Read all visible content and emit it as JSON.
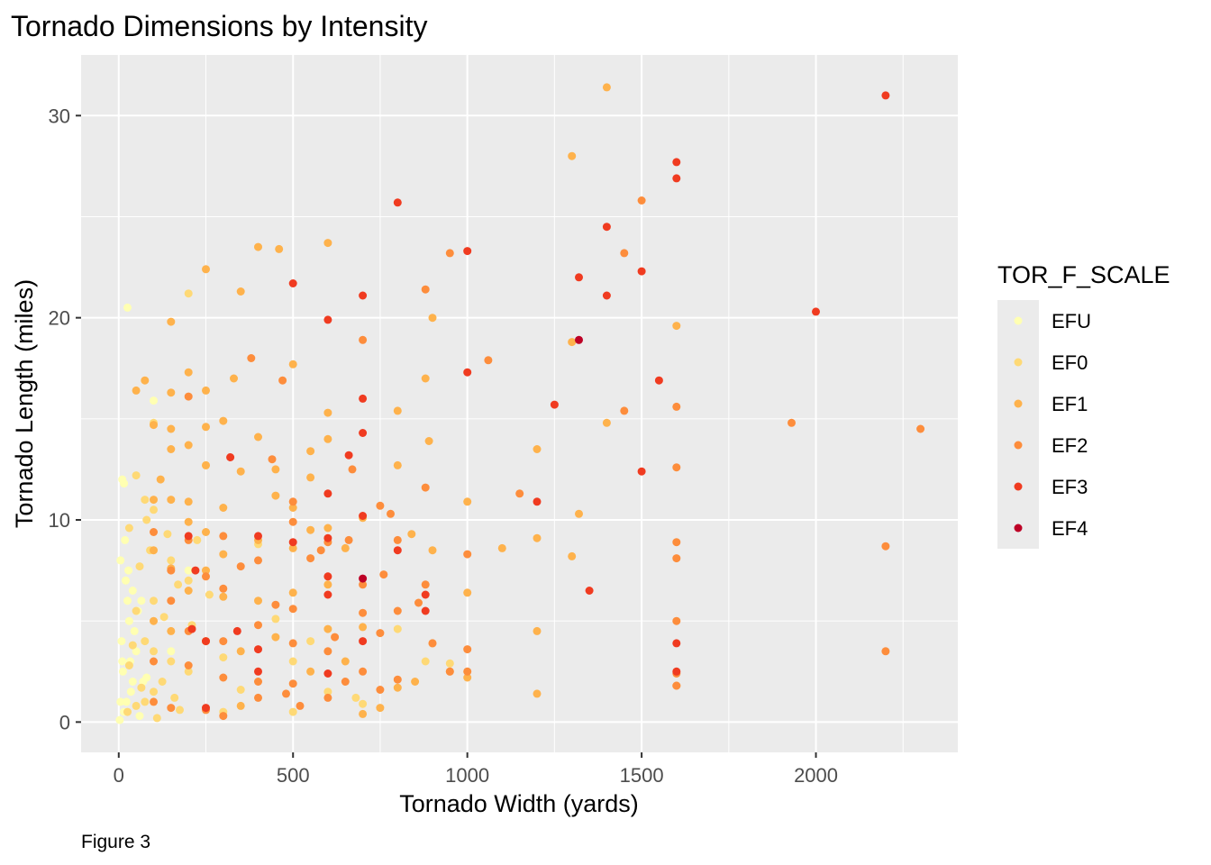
{
  "chart_data": {
    "type": "scatter",
    "title": "Tornado Dimensions by Intensity",
    "xlabel": "Tornado Width (yards)",
    "ylabel": "Tornado Length (miles)",
    "caption": "Figure 3",
    "xlim": [
      -108,
      2407
    ],
    "ylim": [
      -1.5,
      33
    ],
    "xticks": [
      0,
      500,
      1000,
      1500,
      2000
    ],
    "xtick_labels": [
      "0",
      "500",
      "1000",
      "1500",
      "2000"
    ],
    "yticks": [
      0,
      10,
      20,
      30
    ],
    "ytick_labels": [
      "0",
      "10",
      "20",
      "30"
    ],
    "grid": true,
    "legend": {
      "title": "TOR_F_SCALE",
      "position": "right",
      "entries": [
        {
          "label": "EFU",
          "color": "#FFFFB2"
        },
        {
          "label": "EF0",
          "color": "#FED976"
        },
        {
          "label": "EF1",
          "color": "#FEB24C"
        },
        {
          "label": "EF2",
          "color": "#FD8D3C"
        },
        {
          "label": "EF3",
          "color": "#F03B20"
        },
        {
          "label": "EF4",
          "color": "#BD0026"
        }
      ]
    },
    "series": [
      {
        "name": "EFU",
        "color": "#FFFFB2",
        "points": [
          [
            25,
            20.5
          ],
          [
            10,
            12
          ],
          [
            15,
            11.8
          ],
          [
            5,
            8
          ],
          [
            20,
            7
          ],
          [
            30,
            5
          ],
          [
            10,
            3
          ],
          [
            5,
            1
          ],
          [
            40,
            2
          ],
          [
            15,
            0.5
          ],
          [
            8,
            4
          ],
          [
            25,
            6
          ],
          [
            50,
            3.5
          ],
          [
            35,
            1.5
          ],
          [
            60,
            0.3
          ],
          [
            12,
            2.5
          ],
          [
            45,
            4.5
          ],
          [
            18,
            9
          ],
          [
            28,
            7.5
          ],
          [
            55,
            5.5
          ],
          [
            3,
            0.1
          ],
          [
            70,
            2
          ],
          [
            22,
            1
          ],
          [
            40,
            6.5
          ],
          [
            33,
            3
          ],
          [
            100,
            15.9
          ],
          [
            200,
            7.5
          ],
          [
            150,
            3.5
          ],
          [
            80,
            2.2
          ],
          [
            65,
            6
          ]
        ]
      },
      {
        "name": "EF0",
        "color": "#FED976",
        "points": [
          [
            200,
            21.2
          ],
          [
            100,
            14.8
          ],
          [
            50,
            12.2
          ],
          [
            30,
            9.6
          ],
          [
            75,
            11
          ],
          [
            100,
            10.5
          ],
          [
            150,
            8
          ],
          [
            200,
            7
          ],
          [
            100,
            6
          ],
          [
            50,
            5.5
          ],
          [
            75,
            4
          ],
          [
            100,
            3.5
          ],
          [
            150,
            3
          ],
          [
            200,
            2.5
          ],
          [
            125,
            2
          ],
          [
            100,
            1.5
          ],
          [
            75,
            1
          ],
          [
            50,
            0.8
          ],
          [
            25,
            0.5
          ],
          [
            175,
            0.6
          ],
          [
            250,
            12.7
          ],
          [
            225,
            9
          ],
          [
            250,
            4
          ],
          [
            300,
            3.2
          ],
          [
            350,
            1.6
          ],
          [
            300,
            0.5
          ],
          [
            400,
            8.8
          ],
          [
            450,
            5.1
          ],
          [
            500,
            3
          ],
          [
            500,
            0.5
          ],
          [
            550,
            4
          ],
          [
            600,
            1.5
          ],
          [
            680,
            1.2
          ],
          [
            700,
            0.9
          ],
          [
            800,
            4.6
          ],
          [
            880,
            3
          ],
          [
            950,
            2.9
          ],
          [
            60,
            7.7
          ],
          [
            40,
            3.8
          ],
          [
            90,
            8.5
          ],
          [
            130,
            5.2
          ],
          [
            170,
            6.8
          ],
          [
            110,
            0.2
          ],
          [
            160,
            1.2
          ],
          [
            210,
            4.8
          ],
          [
            260,
            6.3
          ],
          [
            80,
            10
          ],
          [
            140,
            9.3
          ],
          [
            30,
            2.8
          ],
          [
            65,
            1.7
          ]
        ]
      },
      {
        "name": "EF1",
        "color": "#FEB24C",
        "points": [
          [
            1400,
            31.4
          ],
          [
            1300,
            28
          ],
          [
            250,
            22.4
          ],
          [
            600,
            23.7
          ],
          [
            400,
            23.5
          ],
          [
            460,
            23.4
          ],
          [
            350,
            21.3
          ],
          [
            150,
            19.8
          ],
          [
            900,
            20
          ],
          [
            1600,
            19.6
          ],
          [
            1300,
            18.8
          ],
          [
            500,
            17.7
          ],
          [
            200,
            17.3
          ],
          [
            330,
            17
          ],
          [
            880,
            17
          ],
          [
            75,
            16.9
          ],
          [
            50,
            16.4
          ],
          [
            150,
            16.3
          ],
          [
            250,
            16.4
          ],
          [
            800,
            15.4
          ],
          [
            600,
            15.3
          ],
          [
            1400,
            14.8
          ],
          [
            100,
            14.7
          ],
          [
            250,
            14.6
          ],
          [
            150,
            14.5
          ],
          [
            200,
            13.7
          ],
          [
            300,
            14.9
          ],
          [
            400,
            14.1
          ],
          [
            550,
            13.4
          ],
          [
            600,
            14
          ],
          [
            800,
            12.7
          ],
          [
            150,
            13.5
          ],
          [
            250,
            12.7
          ],
          [
            350,
            12.4
          ],
          [
            550,
            12.1
          ],
          [
            890,
            13.9
          ],
          [
            1200,
            13.5
          ],
          [
            100,
            11
          ],
          [
            150,
            11
          ],
          [
            200,
            10.9
          ],
          [
            300,
            10.6
          ],
          [
            450,
            11.2
          ],
          [
            500,
            10.6
          ],
          [
            700,
            10.1
          ],
          [
            1000,
            10.9
          ],
          [
            1320,
            10.3
          ],
          [
            200,
            9.9
          ],
          [
            250,
            9.4
          ],
          [
            400,
            9
          ],
          [
            550,
            9.5
          ],
          [
            600,
            9.6
          ],
          [
            840,
            9.3
          ],
          [
            1100,
            8.6
          ],
          [
            1200,
            9.1
          ],
          [
            1300,
            8.2
          ],
          [
            100,
            8.5
          ],
          [
            150,
            7.6
          ],
          [
            250,
            7.5
          ],
          [
            300,
            8.3
          ],
          [
            650,
            8.6
          ],
          [
            200,
            6.5
          ],
          [
            300,
            6.2
          ],
          [
            400,
            6
          ],
          [
            500,
            6.4
          ],
          [
            600,
            6.8
          ],
          [
            1000,
            6.4
          ],
          [
            1200,
            4.5
          ],
          [
            100,
            5
          ],
          [
            150,
            4.5
          ],
          [
            250,
            4
          ],
          [
            350,
            3.5
          ],
          [
            450,
            4.2
          ],
          [
            600,
            4.6
          ],
          [
            700,
            4.7
          ],
          [
            900,
            3.9
          ],
          [
            950,
            2.5
          ],
          [
            1000,
            2.2
          ],
          [
            1200,
            1.4
          ],
          [
            1600,
            1.8
          ],
          [
            750,
            0.7
          ],
          [
            850,
            2
          ],
          [
            800,
            1.7
          ],
          [
            700,
            0.4
          ],
          [
            900,
            8.5
          ],
          [
            450,
            12.5
          ],
          [
            500,
            8.6
          ],
          [
            650,
            3
          ],
          [
            550,
            2.5
          ],
          [
            350,
            0.8
          ],
          [
            120,
            12
          ]
        ]
      },
      {
        "name": "EF2",
        "color": "#FD8D3C",
        "points": [
          [
            1500,
            25.8
          ],
          [
            1450,
            23.2
          ],
          [
            950,
            23.2
          ],
          [
            880,
            21.4
          ],
          [
            1060,
            17.9
          ],
          [
            470,
            16.9
          ],
          [
            380,
            18
          ],
          [
            700,
            18.9
          ],
          [
            200,
            16.1
          ],
          [
            1450,
            15.4
          ],
          [
            1600,
            15.6
          ],
          [
            1930,
            14.8
          ],
          [
            2300,
            14.5
          ],
          [
            440,
            13
          ],
          [
            670,
            12.5
          ],
          [
            1600,
            12.6
          ],
          [
            1150,
            11.3
          ],
          [
            500,
            10.9
          ],
          [
            880,
            11.6
          ],
          [
            750,
            10.7
          ],
          [
            780,
            10.3
          ],
          [
            100,
            9.4
          ],
          [
            200,
            9
          ],
          [
            300,
            9.2
          ],
          [
            500,
            9.9
          ],
          [
            600,
            8.9
          ],
          [
            800,
            9
          ],
          [
            1000,
            8.3
          ],
          [
            1600,
            8.9
          ],
          [
            1600,
            8.1
          ],
          [
            2200,
            8.7
          ],
          [
            150,
            7.5
          ],
          [
            250,
            7.2
          ],
          [
            350,
            7.7
          ],
          [
            400,
            8
          ],
          [
            550,
            8.1
          ],
          [
            700,
            6.8
          ],
          [
            880,
            6.8
          ],
          [
            1600,
            5
          ],
          [
            150,
            6
          ],
          [
            300,
            6.6
          ],
          [
            450,
            5.8
          ],
          [
            500,
            5.6
          ],
          [
            700,
            5.4
          ],
          [
            800,
            5.5
          ],
          [
            860,
            5.9
          ],
          [
            200,
            4.5
          ],
          [
            300,
            4
          ],
          [
            400,
            4.8
          ],
          [
            500,
            3.9
          ],
          [
            600,
            3.5
          ],
          [
            750,
            4.4
          ],
          [
            900,
            3.9
          ],
          [
            1000,
            3.6
          ],
          [
            100,
            3
          ],
          [
            200,
            2.8
          ],
          [
            300,
            2.2
          ],
          [
            400,
            2
          ],
          [
            500,
            1.9
          ],
          [
            650,
            2
          ],
          [
            750,
            1.6
          ],
          [
            1000,
            2.5
          ],
          [
            1600,
            2.4
          ],
          [
            1600,
            1.8
          ],
          [
            2200,
            3.5
          ],
          [
            100,
            1
          ],
          [
            150,
            0.7
          ],
          [
            250,
            0.6
          ],
          [
            300,
            0.3
          ],
          [
            400,
            1.2
          ],
          [
            480,
            1.4
          ],
          [
            520,
            0.8
          ],
          [
            600,
            1.2
          ],
          [
            700,
            2.5
          ],
          [
            800,
            2.1
          ],
          [
            950,
            2.5
          ],
          [
            580,
            8.5
          ],
          [
            660,
            9
          ],
          [
            760,
            7.3
          ],
          [
            620,
            4.2
          ]
        ]
      },
      {
        "name": "EF3",
        "color": "#F03B20",
        "points": [
          [
            2200,
            31
          ],
          [
            1600,
            27.7
          ],
          [
            1600,
            26.9
          ],
          [
            800,
            25.7
          ],
          [
            1400,
            24.5
          ],
          [
            1000,
            23.3
          ],
          [
            1500,
            22.3
          ],
          [
            1320,
            22
          ],
          [
            500,
            21.7
          ],
          [
            700,
            21.1
          ],
          [
            1400,
            21.1
          ],
          [
            2000,
            20.3
          ],
          [
            600,
            19.9
          ],
          [
            1000,
            17.3
          ],
          [
            1550,
            16.9
          ],
          [
            700,
            16
          ],
          [
            1250,
            15.7
          ],
          [
            700,
            14.3
          ],
          [
            660,
            13.2
          ],
          [
            320,
            13.1
          ],
          [
            1500,
            12.4
          ],
          [
            600,
            11.3
          ],
          [
            1200,
            10.9
          ],
          [
            700,
            10.2
          ],
          [
            200,
            9.2
          ],
          [
            400,
            9.2
          ],
          [
            600,
            9.1
          ],
          [
            500,
            8.9
          ],
          [
            800,
            8.5
          ],
          [
            600,
            7.2
          ],
          [
            220,
            7.5
          ],
          [
            880,
            6.3
          ],
          [
            1350,
            6.5
          ],
          [
            600,
            6.3
          ],
          [
            210,
            4.6
          ],
          [
            250,
            4
          ],
          [
            340,
            4.5
          ],
          [
            400,
            3.6
          ],
          [
            700,
            4
          ],
          [
            1600,
            3.9
          ],
          [
            400,
            2.5
          ],
          [
            1600,
            2.5
          ],
          [
            600,
            2.4
          ],
          [
            250,
            0.7
          ],
          [
            880,
            5.5
          ]
        ]
      },
      {
        "name": "EF4",
        "color": "#BD0026",
        "points": [
          [
            1320,
            18.9
          ],
          [
            700,
            7.1
          ]
        ]
      }
    ]
  }
}
